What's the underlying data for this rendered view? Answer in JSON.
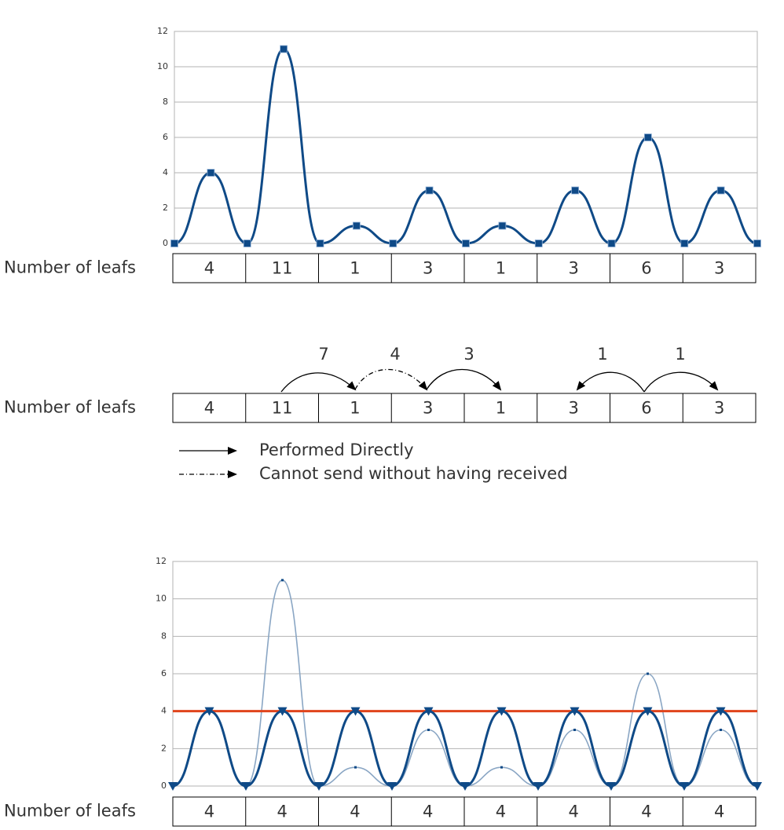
{
  "chart_data": [
    {
      "type": "line",
      "ylim": [
        0,
        12
      ],
      "yticks": [
        0,
        2,
        4,
        6,
        8,
        10,
        12
      ],
      "grid": true,
      "series": [
        {
          "color": "#0f4a87",
          "marker": "square",
          "values": [
            0,
            4,
            0,
            11,
            0,
            1,
            0,
            3,
            0,
            1,
            0,
            3,
            0,
            6,
            0,
            3,
            0
          ]
        }
      ]
    },
    {
      "type": "line",
      "ylim": [
        0,
        12
      ],
      "yticks": [
        0,
        2,
        4,
        6,
        8,
        10,
        12
      ],
      "grid": true,
      "series": [
        {
          "color": "#8aa6c4",
          "marker": "dot",
          "smooth": true,
          "values": [
            0,
            4,
            0,
            11,
            0,
            1,
            0,
            3,
            0,
            1,
            0,
            3,
            0,
            6,
            0,
            3,
            0
          ]
        },
        {
          "color": "#e0441c",
          "marker": "none",
          "smooth": false,
          "values": [
            4,
            4,
            4,
            4,
            4,
            4,
            4,
            4,
            4,
            4,
            4,
            4,
            4,
            4,
            4,
            4,
            4
          ]
        },
        {
          "color": "#0f4a87",
          "marker": "triangle",
          "smooth": true,
          "values": [
            0,
            4,
            0,
            4,
            0,
            4,
            0,
            4,
            0,
            4,
            0,
            4,
            0,
            4,
            0,
            4,
            0
          ]
        }
      ]
    }
  ],
  "tables": [
    {
      "label": "Number of leafs",
      "cells": [
        4,
        11,
        1,
        3,
        1,
        3,
        6,
        3
      ]
    },
    {
      "label": "Number of leafs",
      "cells": [
        4,
        11,
        1,
        3,
        1,
        3,
        6,
        3
      ]
    },
    {
      "label": "Number of leafs",
      "cells": [
        4,
        4,
        4,
        4,
        4,
        4,
        4,
        4
      ]
    }
  ],
  "transfers": [
    7,
    4,
    3,
    1,
    1
  ],
  "legend": [
    "Performed Directly",
    "Cannot send without having received"
  ]
}
